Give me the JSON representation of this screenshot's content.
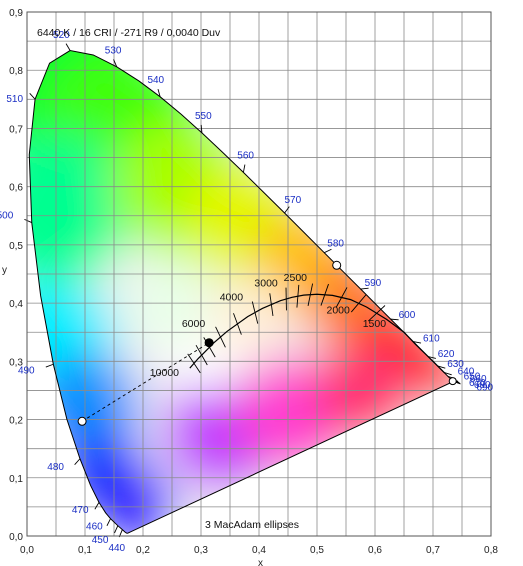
{
  "chart_data": {
    "type": "scatter",
    "title": "6440 K / 16 CRI / -271 R9 / 0,0040 Duv",
    "xlabel": "x",
    "ylabel": "y",
    "xlim": [
      0.0,
      0.8
    ],
    "ylim": [
      0.0,
      0.9
    ],
    "grid": true,
    "x_ticks": [
      "0,0",
      "0,1",
      "0,2",
      "0,3",
      "0,4",
      "0,5",
      "0,6",
      "0,7",
      "0,8"
    ],
    "y_ticks": [
      "0,0",
      "0,1",
      "0,2",
      "0,3",
      "0,4",
      "0,5",
      "0,6",
      "0,7",
      "0,8",
      "0,9"
    ],
    "footer_note": "3  MacAdam ellipses",
    "spectral_locus_labels": [
      {
        "nm": "440",
        "x": 0.1644,
        "y": 0.0109
      },
      {
        "nm": "450",
        "x": 0.1566,
        "y": 0.0177
      },
      {
        "nm": "460",
        "x": 0.144,
        "y": 0.0297
      },
      {
        "nm": "470",
        "x": 0.1241,
        "y": 0.0578
      },
      {
        "nm": "480",
        "x": 0.0913,
        "y": 0.1327
      },
      {
        "nm": "490",
        "x": 0.0454,
        "y": 0.295
      },
      {
        "nm": "500",
        "x": 0.0082,
        "y": 0.5384
      },
      {
        "nm": "510",
        "x": 0.0139,
        "y": 0.7502
      },
      {
        "nm": "520",
        "x": 0.0743,
        "y": 0.8338
      },
      {
        "nm": "530",
        "x": 0.1547,
        "y": 0.8059
      },
      {
        "nm": "540",
        "x": 0.2296,
        "y": 0.7543
      },
      {
        "nm": "550",
        "x": 0.3016,
        "y": 0.6923
      },
      {
        "nm": "560",
        "x": 0.3731,
        "y": 0.6245
      },
      {
        "nm": "570",
        "x": 0.4441,
        "y": 0.5547
      },
      {
        "nm": "580",
        "x": 0.5125,
        "y": 0.4866
      },
      {
        "nm": "590",
        "x": 0.5752,
        "y": 0.4242
      },
      {
        "nm": "600",
        "x": 0.627,
        "y": 0.3725
      },
      {
        "nm": "610",
        "x": 0.6658,
        "y": 0.334
      },
      {
        "nm": "620",
        "x": 0.6915,
        "y": 0.3083
      },
      {
        "nm": "630",
        "x": 0.7079,
        "y": 0.292
      },
      {
        "nm": "640",
        "x": 0.719,
        "y": 0.2809
      },
      {
        "nm": "650",
        "x": 0.726,
        "y": 0.274
      },
      {
        "nm": "660",
        "x": 0.73,
        "y": 0.27
      },
      {
        "nm": "670",
        "x": 0.732,
        "y": 0.268
      },
      {
        "nm": "680",
        "x": 0.7334,
        "y": 0.2666
      },
      {
        "nm": "690",
        "x": 0.7344,
        "y": 0.2656
      }
    ],
    "planckian_cct_labels": [
      {
        "label": "10000",
        "x": 0.2807,
        "y": 0.2883
      },
      {
        "label": "6000",
        "x": 0.3221,
        "y": 0.3318
      },
      {
        "label": "4000",
        "x": 0.3805,
        "y": 0.3768
      },
      {
        "label": "3000",
        "x": 0.4369,
        "y": 0.4041
      },
      {
        "label": "2500",
        "x": 0.477,
        "y": 0.4137
      },
      {
        "label": "2000",
        "x": 0.5267,
        "y": 0.4133
      },
      {
        "label": "1500",
        "x": 0.5857,
        "y": 0.3931
      }
    ],
    "points": [
      {
        "name": "white point",
        "x": 0.314,
        "y": 0.332
      },
      {
        "name": "dominant wavelength point",
        "x": 0.534,
        "y": 0.465
      },
      {
        "name": "complementary point",
        "x": 0.095,
        "y": 0.197
      },
      {
        "name": "red end point",
        "x": 0.734,
        "y": 0.266
      }
    ]
  }
}
